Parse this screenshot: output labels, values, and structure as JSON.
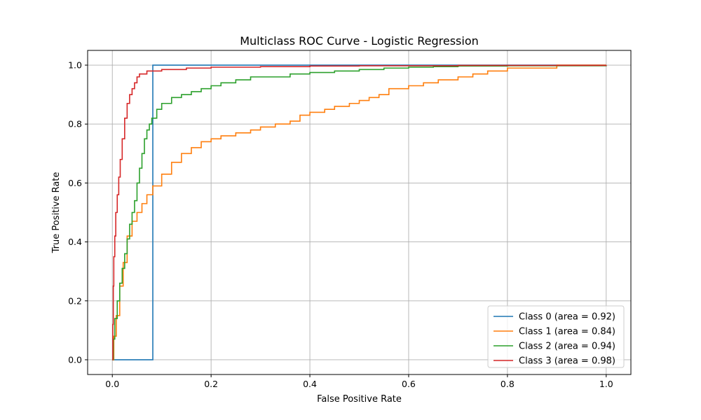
{
  "chart_data": {
    "type": "line",
    "title": "Multiclass ROC Curve - Logistic Regression",
    "xlabel": "False Positive Rate",
    "ylabel": "True Positive Rate",
    "xlim": [
      -0.05,
      1.05
    ],
    "ylim": [
      -0.05,
      1.05
    ],
    "xticks": [
      0.0,
      0.2,
      0.4,
      0.6,
      0.8,
      1.0
    ],
    "yticks": [
      0.0,
      0.2,
      0.4,
      0.6,
      0.8,
      1.0
    ],
    "grid": true,
    "legend_position": "lower-right",
    "series": [
      {
        "name": "Class 0 (area = 0.92)",
        "color": "#1f77b4",
        "step": true,
        "points": [
          [
            0,
            0
          ],
          [
            0.082,
            0
          ],
          [
            0.082,
            1.0
          ],
          [
            1.0,
            1.0
          ]
        ]
      },
      {
        "name": "Class 1 (area = 0.84)",
        "color": "#ff7f0e",
        "step": true,
        "points": [
          [
            0,
            0
          ],
          [
            0.003,
            0.08
          ],
          [
            0.008,
            0.15
          ],
          [
            0.015,
            0.25
          ],
          [
            0.022,
            0.33
          ],
          [
            0.03,
            0.42
          ],
          [
            0.04,
            0.47
          ],
          [
            0.05,
            0.5
          ],
          [
            0.06,
            0.53
          ],
          [
            0.07,
            0.56
          ],
          [
            0.082,
            0.59
          ],
          [
            0.1,
            0.63
          ],
          [
            0.12,
            0.67
          ],
          [
            0.14,
            0.7
          ],
          [
            0.16,
            0.72
          ],
          [
            0.18,
            0.74
          ],
          [
            0.2,
            0.75
          ],
          [
            0.22,
            0.76
          ],
          [
            0.25,
            0.77
          ],
          [
            0.28,
            0.78
          ],
          [
            0.3,
            0.79
          ],
          [
            0.33,
            0.8
          ],
          [
            0.36,
            0.81
          ],
          [
            0.38,
            0.83
          ],
          [
            0.4,
            0.84
          ],
          [
            0.43,
            0.85
          ],
          [
            0.45,
            0.86
          ],
          [
            0.48,
            0.87
          ],
          [
            0.5,
            0.88
          ],
          [
            0.52,
            0.89
          ],
          [
            0.54,
            0.9
          ],
          [
            0.56,
            0.92
          ],
          [
            0.58,
            0.92
          ],
          [
            0.6,
            0.93
          ],
          [
            0.63,
            0.94
          ],
          [
            0.66,
            0.95
          ],
          [
            0.68,
            0.95
          ],
          [
            0.7,
            0.96
          ],
          [
            0.73,
            0.97
          ],
          [
            0.76,
            0.98
          ],
          [
            0.8,
            0.99
          ],
          [
            0.86,
            0.99
          ],
          [
            0.9,
            1.0
          ],
          [
            1.0,
            1.0
          ]
        ]
      },
      {
        "name": "Class 2 (area = 0.94)",
        "color": "#2ca02c",
        "step": true,
        "points": [
          [
            0,
            0
          ],
          [
            0.002,
            0.07
          ],
          [
            0.005,
            0.14
          ],
          [
            0.01,
            0.2
          ],
          [
            0.015,
            0.26
          ],
          [
            0.02,
            0.31
          ],
          [
            0.025,
            0.36
          ],
          [
            0.03,
            0.41
          ],
          [
            0.035,
            0.46
          ],
          [
            0.04,
            0.5
          ],
          [
            0.045,
            0.54
          ],
          [
            0.05,
            0.6
          ],
          [
            0.055,
            0.65
          ],
          [
            0.06,
            0.7
          ],
          [
            0.065,
            0.75
          ],
          [
            0.07,
            0.78
          ],
          [
            0.075,
            0.8
          ],
          [
            0.08,
            0.82
          ],
          [
            0.09,
            0.85
          ],
          [
            0.1,
            0.87
          ],
          [
            0.12,
            0.89
          ],
          [
            0.14,
            0.9
          ],
          [
            0.16,
            0.91
          ],
          [
            0.18,
            0.92
          ],
          [
            0.2,
            0.93
          ],
          [
            0.22,
            0.94
          ],
          [
            0.25,
            0.95
          ],
          [
            0.28,
            0.96
          ],
          [
            0.33,
            0.96
          ],
          [
            0.36,
            0.97
          ],
          [
            0.4,
            0.975
          ],
          [
            0.45,
            0.98
          ],
          [
            0.5,
            0.985
          ],
          [
            0.55,
            0.99
          ],
          [
            0.6,
            0.993
          ],
          [
            0.65,
            0.995
          ],
          [
            0.7,
            0.997
          ],
          [
            0.8,
            0.998
          ],
          [
            1.0,
            1.0
          ]
        ]
      },
      {
        "name": "Class 3 (area = 0.98)",
        "color": "#d62728",
        "step": true,
        "points": [
          [
            0,
            0
          ],
          [
            0.001,
            0.12
          ],
          [
            0.002,
            0.25
          ],
          [
            0.003,
            0.35
          ],
          [
            0.005,
            0.42
          ],
          [
            0.007,
            0.5
          ],
          [
            0.01,
            0.56
          ],
          [
            0.013,
            0.62
          ],
          [
            0.016,
            0.68
          ],
          [
            0.02,
            0.75
          ],
          [
            0.025,
            0.82
          ],
          [
            0.03,
            0.87
          ],
          [
            0.035,
            0.9
          ],
          [
            0.04,
            0.92
          ],
          [
            0.045,
            0.94
          ],
          [
            0.05,
            0.96
          ],
          [
            0.055,
            0.97
          ],
          [
            0.07,
            0.98
          ],
          [
            0.1,
            0.985
          ],
          [
            0.15,
            0.99
          ],
          [
            0.2,
            0.993
          ],
          [
            0.3,
            0.995
          ],
          [
            0.4,
            0.997
          ],
          [
            0.5,
            0.998
          ],
          [
            0.7,
            0.999
          ],
          [
            1.0,
            1.0
          ]
        ]
      }
    ]
  }
}
